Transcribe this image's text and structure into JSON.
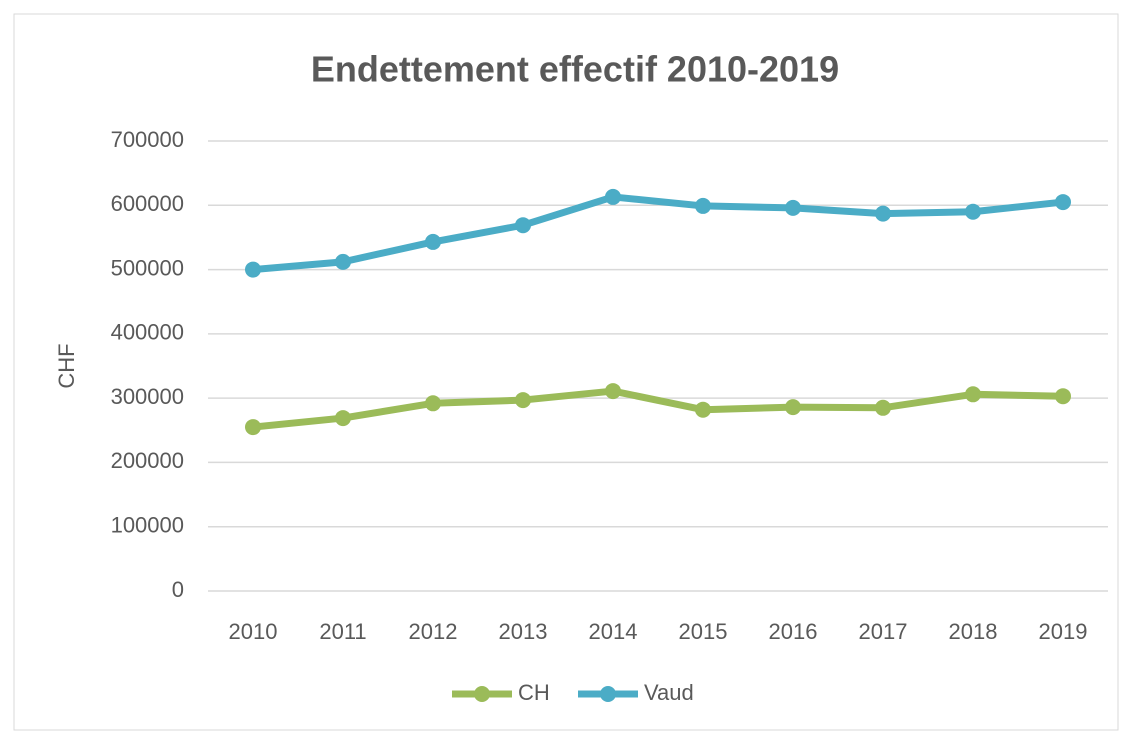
{
  "chart_data": {
    "type": "line",
    "title": "Endettement effectif 2010-2019",
    "y_label": "CHF",
    "categories": [
      "2010",
      "2011",
      "2012",
      "2013",
      "2014",
      "2015",
      "2016",
      "2017",
      "2018",
      "2019"
    ],
    "series": [
      {
        "name": "CH",
        "color": "#9bbb59",
        "values": [
          255000,
          269000,
          292000,
          297000,
          311000,
          282000,
          286000,
          285000,
          306000,
          303000
        ]
      },
      {
        "name": "Vaud",
        "color": "#4bacc6",
        "values": [
          500000,
          512000,
          543000,
          569000,
          613000,
          599000,
          596000,
          587000,
          590000,
          605000
        ]
      }
    ],
    "ylim": [
      0,
      700000
    ],
    "yticks": [
      0,
      100000,
      200000,
      300000,
      400000,
      500000,
      600000,
      700000
    ],
    "grid": true,
    "legend": "bottom"
  }
}
